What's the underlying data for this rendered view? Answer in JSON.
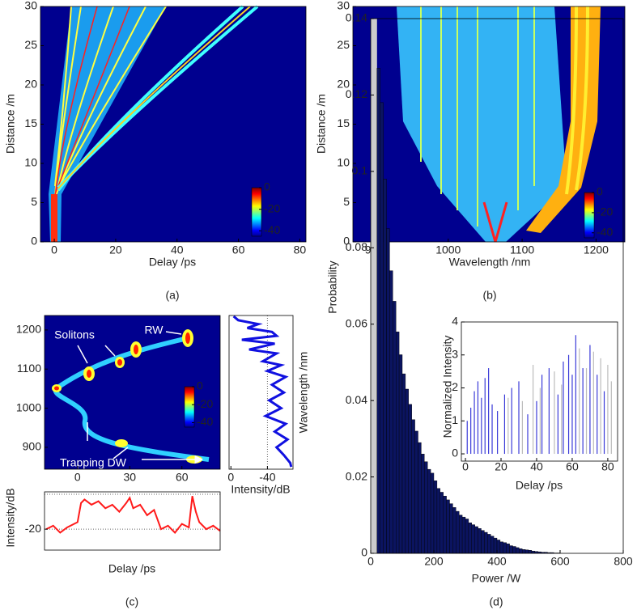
{
  "chart_data": [
    {
      "type": "heatmap",
      "xlabel": "Delay /ps",
      "ylabel": "Distance /m",
      "xlim": [
        -4.5,
        82
      ],
      "xticks": [
        0,
        20,
        40,
        60,
        80
      ],
      "ylim": [
        0,
        30
      ],
      "yticks": [
        0,
        5,
        10,
        15,
        20,
        25,
        30
      ],
      "colorbar": {
        "lim": [
          0,
          -45
        ],
        "ticks": [
          0,
          -20,
          -40
        ]
      },
      "panel_label": "(a)"
    },
    {
      "type": "heatmap",
      "xlabel": "Wavelength /nm",
      "ylabel": "Distance /m",
      "xlim": [
        871,
        1239
      ],
      "xticks": [
        900,
        1000,
        1100,
        1200
      ],
      "ylim": [
        0,
        30
      ],
      "yticks": [
        0,
        5,
        10,
        15,
        20,
        25,
        30
      ],
      "colorbar": {
        "lim": [
          0,
          -45
        ],
        "ticks": [
          0,
          -20,
          -40
        ]
      },
      "panel_label": "(b)"
    },
    {
      "type": "heatmap",
      "xlim": [
        -19,
        82
      ],
      "xticks": [
        0,
        30,
        60
      ],
      "ylim": [
        844,
        1237
      ],
      "yticks": [
        900,
        1000,
        1100,
        1200
      ],
      "colorbar": {
        "lim": [
          0,
          -45
        ],
        "ticks": [
          0,
          -20,
          -40
        ]
      },
      "annotations": [
        "Solitons",
        "RW",
        "Trapping DW"
      ],
      "panel_label": "(c)"
    },
    {
      "type": "spectrum",
      "xlabel": "Intensity/dB",
      "ylabel": "Wavelength /nm",
      "xlim": [
        2,
        -68
      ],
      "xticks": [
        0,
        -40
      ],
      "ylim": [
        844,
        1237
      ],
      "ref_lines": [
        -40
      ],
      "color": "#1010e0",
      "y": [
        1235,
        1225,
        1215,
        1205,
        1195,
        1185,
        1175,
        1165,
        1150,
        1140,
        1120,
        1110,
        1095,
        1080,
        1060,
        1040,
        1020,
        1000,
        980,
        960,
        940,
        920,
        900,
        880,
        860,
        850
      ],
      "values": [
        -3,
        -8,
        -30,
        -18,
        -45,
        -50,
        -12,
        -48,
        -20,
        -50,
        -35,
        -55,
        -40,
        -60,
        -45,
        -58,
        -42,
        -55,
        -38,
        -60,
        -48,
        -62,
        -50,
        -58,
        -65,
        -66
      ]
    },
    {
      "type": "line",
      "xlabel": "Delay /ps",
      "ylabel": "Intensity/dB",
      "xlim": [
        -19,
        82
      ],
      "ylim": [
        -32,
        1.4
      ],
      "yticks": [
        -20
      ],
      "ref_lines": [
        0,
        -20
      ],
      "color": "#ff1a1a",
      "x": [
        -18,
        -14,
        -10,
        -6,
        -2,
        0,
        2,
        4,
        8,
        12,
        16,
        20,
        24,
        28,
        30,
        32,
        36,
        40,
        44,
        48,
        52,
        56,
        60,
        64,
        66,
        68,
        70,
        74,
        78,
        82
      ],
      "values": [
        -20,
        -18,
        -22,
        -19,
        -17,
        -16,
        -5,
        -3,
        -6,
        -4,
        -8,
        -6,
        -10,
        -5,
        -2,
        -8,
        -6,
        -12,
        -9,
        -20,
        -18,
        -22,
        -17,
        -19,
        -1,
        -10,
        -16,
        -20,
        -18,
        -21
      ]
    },
    {
      "type": "histogram",
      "xlabel": "Power /W",
      "ylabel": "Probability",
      "xlim": [
        0,
        800
      ],
      "xticks": [
        0,
        200,
        400,
        600,
        800
      ],
      "ylim": [
        0,
        0.14
      ],
      "yticks": [
        0,
        0.02,
        0.04,
        0.06,
        0.08,
        0.1,
        0.12,
        0.14
      ],
      "shaded_xrange": [
        0,
        20
      ],
      "color": "#0b1460",
      "panel_label": "(d)",
      "bins": [
        20,
        30,
        40,
        50,
        60,
        70,
        80,
        90,
        100,
        110,
        120,
        130,
        140,
        150,
        160,
        170,
        180,
        190,
        200,
        210,
        220,
        230,
        240,
        250,
        260,
        270,
        280,
        290,
        300,
        310,
        320,
        330,
        340,
        350,
        360,
        370,
        380,
        390,
        400,
        410,
        420,
        430,
        440,
        450,
        460,
        470,
        480,
        490,
        500,
        510,
        520,
        530,
        540,
        550,
        560,
        570,
        580,
        590,
        600
      ],
      "values": [
        0.127,
        0.118,
        0.098,
        0.085,
        0.074,
        0.066,
        0.058,
        0.052,
        0.047,
        0.043,
        0.039,
        0.035,
        0.032,
        0.029,
        0.026,
        0.024,
        0.022,
        0.021,
        0.019,
        0.017,
        0.016,
        0.015,
        0.014,
        0.013,
        0.012,
        0.011,
        0.01,
        0.0095,
        0.009,
        0.008,
        0.0075,
        0.007,
        0.0065,
        0.006,
        0.0055,
        0.005,
        0.0045,
        0.004,
        0.0035,
        0.003,
        0.0028,
        0.0025,
        0.002,
        0.0018,
        0.0015,
        0.0012,
        0.001,
        0.0009,
        0.0008,
        0.0006,
        0.0005,
        0.0004,
        0.0003,
        0.0003,
        0.0002,
        0.0002,
        0.0001,
        0.0001
      ]
    },
    {
      "type": "spikes",
      "xlabel": "Delay /ps",
      "ylabel": "Normalized Intensity",
      "xlim": [
        -2.3,
        85.5
      ],
      "xticks": [
        0,
        20,
        40,
        60,
        80
      ],
      "ylim": [
        -0.22,
        4
      ],
      "yticks": [
        0,
        1,
        2,
        3,
        4
      ],
      "series": [
        {
          "color": "#bbbbbb",
          "x": [
            24,
            32,
            38,
            42,
            50,
            54,
            64,
            68,
            72,
            76,
            80,
            82
          ],
          "values": [
            1.7,
            1.6,
            2.7,
            2.0,
            2.5,
            2.1,
            3.2,
            2.6,
            3.1,
            2.9,
            2.7,
            2.2
          ]
        },
        {
          "color": "#3a3ad8",
          "x": [
            1,
            3,
            5,
            7,
            9,
            11,
            13,
            15,
            18,
            22,
            26,
            30,
            35,
            40,
            43,
            47,
            52,
            55,
            58,
            60,
            62,
            66,
            70,
            74,
            78
          ],
          "values": [
            1.0,
            1.4,
            1.9,
            2.2,
            1.7,
            2.3,
            2.6,
            1.5,
            1.3,
            1.8,
            2.0,
            2.2,
            1.2,
            1.6,
            2.4,
            2.6,
            1.8,
            2.8,
            3.0,
            2.4,
            3.6,
            2.6,
            3.3,
            2.4,
            1.9
          ]
        }
      ]
    }
  ]
}
